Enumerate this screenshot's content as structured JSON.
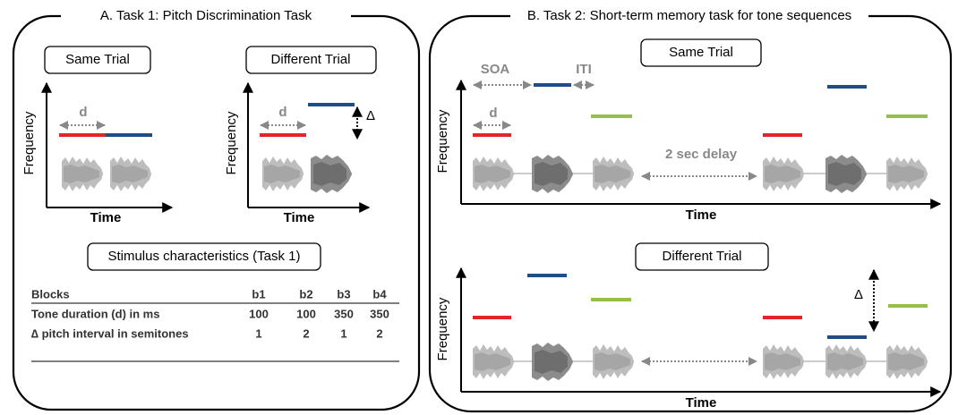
{
  "panel_a": {
    "title": "A. Task 1: Pitch Discrimination Task",
    "same_trial": {
      "label": "Same Trial",
      "d": "d",
      "y_axis": "Frequency",
      "x_axis": "Time"
    },
    "different_trial": {
      "label": "Different Trial",
      "d": "d",
      "delta": "Δ",
      "y_axis": "Frequency",
      "x_axis": "Time"
    },
    "table": {
      "title": "Stimulus characteristics (Task 1)",
      "header": [
        "Blocks",
        "b1",
        "b2",
        "b3",
        "b4"
      ],
      "rows": [
        [
          "Tone duration (d) in ms",
          100,
          100,
          350,
          350
        ],
        [
          "∆ pitch interval in semitones",
          1,
          2,
          1,
          2
        ]
      ]
    }
  },
  "panel_b": {
    "title": "B. Task 2: Short-term memory task for tone sequences",
    "same_trial": {
      "label": "Same Trial",
      "soa": "SOA",
      "iti": "ITI",
      "d": "d",
      "delay": "2 sec delay",
      "y_axis": "Frequency",
      "x_axis": "Time"
    },
    "different_trial": {
      "label": "Different Trial",
      "delta": "Δ",
      "y_axis": "Frequency",
      "x_axis": "Time"
    }
  }
}
